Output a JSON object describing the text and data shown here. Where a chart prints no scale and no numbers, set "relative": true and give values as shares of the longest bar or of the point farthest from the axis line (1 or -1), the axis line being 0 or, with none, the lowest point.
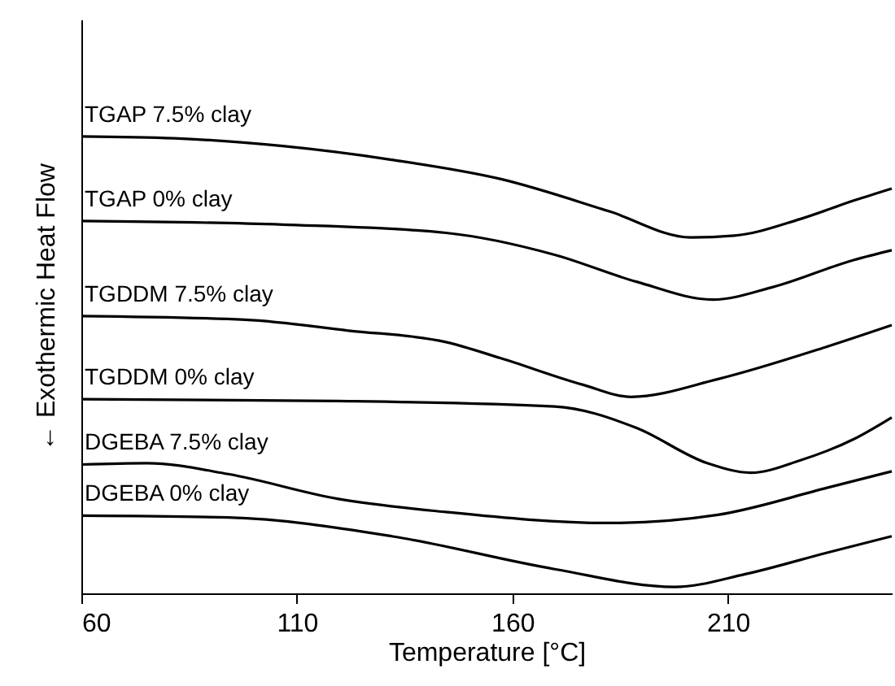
{
  "chart_data": {
    "type": "line",
    "xlabel": "Temperature [°C]",
    "ylabel": "← Exothermic Heat Flow",
    "relative": true,
    "xlim": [
      60,
      248
    ],
    "xticks": [
      60,
      110,
      160,
      210
    ],
    "grid": false,
    "marker": "none",
    "line_style": "solid",
    "series": [
      {
        "name": "TGAP 7.5% clay",
        "color": "#000000",
        "x": [
          60,
          81.5,
          106.7,
          132,
          157.2,
          182.5,
          201.4,
          211.5,
          226.7,
          239.3,
          248
        ],
        "values": [
          1.0,
          0.996,
          0.979,
          0.949,
          0.907,
          0.836,
          0.779,
          0.783,
          0.819,
          0.86,
          0.886
        ]
      },
      {
        "name": "TGAP 0% clay",
        "color": "#000000",
        "x": [
          60,
          106.7,
          144.6,
          169.8,
          188.8,
          206.5,
          220.3,
          239.3,
          248
        ],
        "values": [
          0.815,
          0.807,
          0.789,
          0.741,
          0.682,
          0.643,
          0.67,
          0.73,
          0.751
        ]
      },
      {
        "name": "TGDDM 7.5% clay",
        "color": "#000000",
        "x": [
          60,
          98,
          122,
          144.6,
          157.2,
          176.2,
          187.5,
          207.7,
          233,
          248
        ],
        "values": [
          0.607,
          0.599,
          0.575,
          0.55,
          0.515,
          0.457,
          0.43,
          0.469,
          0.54,
          0.587
        ]
      },
      {
        "name": "TGDDM 0% clay",
        "color": "#000000",
        "x": [
          60,
          119.4,
          169.8,
          188.8,
          205.2,
          215.3,
          226.7,
          239.3,
          248
        ],
        "values": [
          0.425,
          0.421,
          0.409,
          0.362,
          0.285,
          0.264,
          0.291,
          0.338,
          0.385
        ]
      },
      {
        "name": "DGEBA 7.5% clay",
        "color": "#000000",
        "x": [
          60,
          75.2,
          94.1,
          119.4,
          144.6,
          182.5,
          207.7,
          233,
          248
        ],
        "values": [
          0.282,
          0.285,
          0.261,
          0.207,
          0.178,
          0.154,
          0.172,
          0.231,
          0.267
        ]
      },
      {
        "name": "DGEBA 0% clay",
        "color": "#000000",
        "x": [
          60,
          94.1,
          132,
          169.8,
          197.6,
          214,
          233,
          248
        ],
        "values": [
          0.17,
          0.166,
          0.125,
          0.053,
          0.014,
          0.042,
          0.089,
          0.125
        ]
      }
    ]
  }
}
